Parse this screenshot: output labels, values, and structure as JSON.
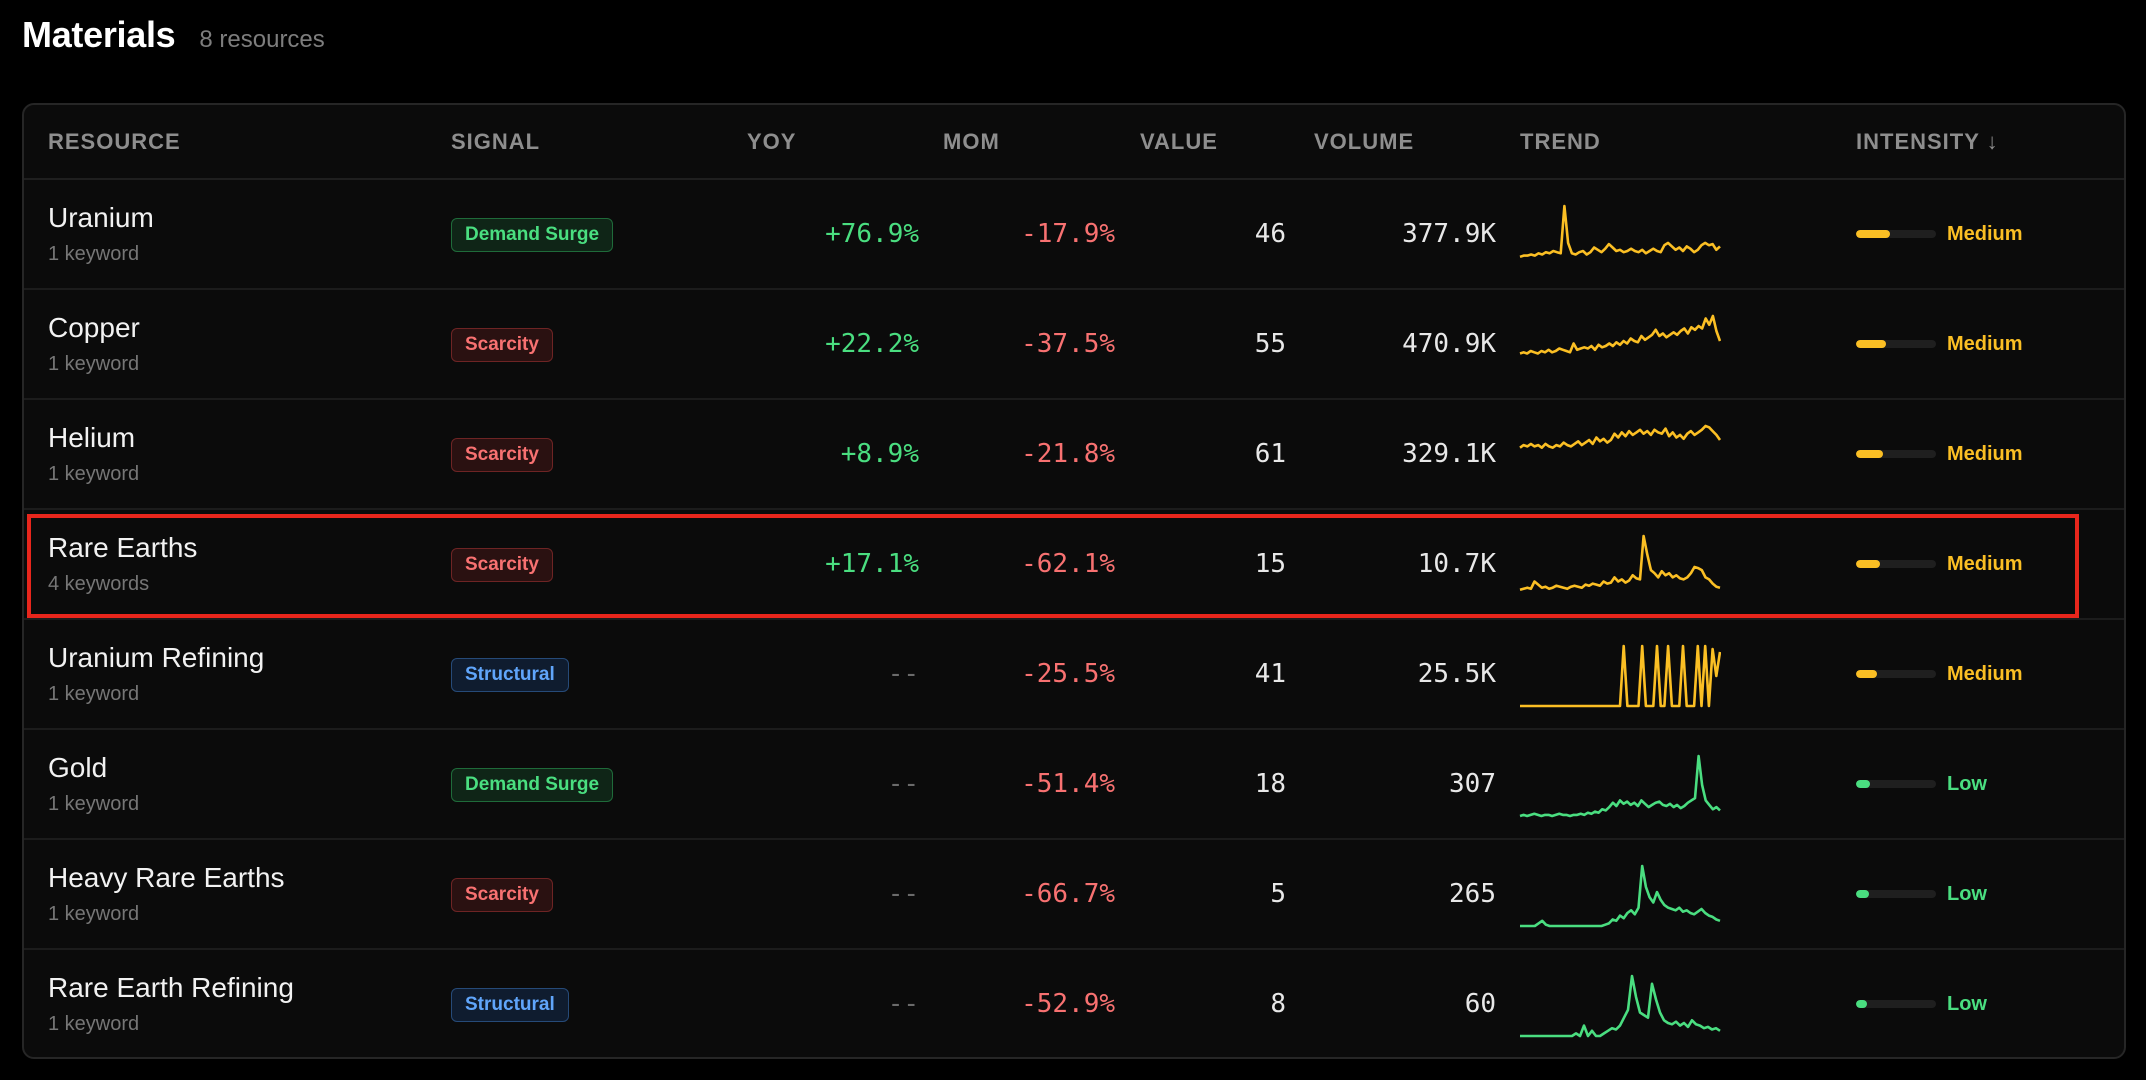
{
  "header": {
    "title": "Materials",
    "count": "8 resources"
  },
  "columns": {
    "resource": "RESOURCE",
    "signal": "SIGNAL",
    "yoy": "YOY",
    "mom": "MOM",
    "value": "VALUE",
    "volume": "VOLUME",
    "trend": "TREND",
    "intensity": "INTENSITY ↓",
    "intensity_sort_icon": "arrow-down-icon"
  },
  "colors": {
    "positive": "#4ade80",
    "negative": "#f87171",
    "medium": "#fbbf24",
    "low": "#4ade80",
    "highlight": "#e8261c",
    "background": "#000000"
  },
  "rows": [
    {
      "name": "Uranium",
      "keywords": "1 keyword",
      "signal": "Demand Surge",
      "signal_type": "demand",
      "yoy": "+76.9%",
      "yoy_type": "pos",
      "mom": "-17.9%",
      "value": "46",
      "volume": "377.9K",
      "intensity": "Medium",
      "intensity_level": 0.42,
      "trend_color": "#fbbf24",
      "trend": [
        8,
        9,
        9,
        10,
        9,
        11,
        10,
        12,
        11,
        13,
        12,
        11,
        52,
        20,
        11,
        10,
        12,
        13,
        10,
        12,
        16,
        14,
        12,
        15,
        19,
        16,
        13,
        14,
        12,
        13,
        15,
        13,
        12,
        14,
        11,
        13,
        15,
        13,
        12,
        18,
        20,
        17,
        14,
        16,
        13,
        17,
        15,
        12,
        14,
        18,
        20,
        18,
        19,
        14,
        17
      ]
    },
    {
      "name": "Copper",
      "keywords": "1 keyword",
      "signal": "Scarcity",
      "signal_type": "scarcity",
      "yoy": "+22.2%",
      "yoy_type": "pos",
      "mom": "-37.5%",
      "value": "55",
      "volume": "470.9K",
      "intensity": "Medium",
      "intensity_level": 0.38,
      "trend_color": "#fbbf24",
      "trend": [
        18,
        19,
        18,
        20,
        19,
        18,
        20,
        19,
        21,
        19,
        20,
        22,
        21,
        20,
        19,
        26,
        21,
        22,
        23,
        22,
        24,
        21,
        25,
        23,
        24,
        26,
        24,
        27,
        25,
        28,
        26,
        30,
        28,
        27,
        32,
        29,
        31,
        33,
        37,
        32,
        34,
        31,
        33,
        35,
        33,
        36,
        38,
        34,
        39,
        37,
        40,
        38,
        46,
        41,
        48,
        36,
        28
      ]
    },
    {
      "name": "Helium",
      "keywords": "1 keyword",
      "signal": "Scarcity",
      "signal_type": "scarcity",
      "yoy": "+8.9%",
      "yoy_type": "pos",
      "mom": "-21.8%",
      "value": "61",
      "volume": "329.1K",
      "intensity": "Medium",
      "intensity_level": 0.34,
      "trend_color": "#fbbf24",
      "trend": [
        30,
        32,
        31,
        33,
        31,
        32,
        30,
        33,
        31,
        30,
        32,
        31,
        34,
        32,
        31,
        33,
        35,
        32,
        34,
        36,
        33,
        38,
        35,
        37,
        34,
        36,
        41,
        38,
        42,
        39,
        43,
        40,
        42,
        44,
        41,
        43,
        40,
        44,
        42,
        41,
        45,
        39,
        42,
        38,
        40,
        37,
        41,
        43,
        40,
        42,
        44,
        47,
        46,
        43,
        40,
        36
      ]
    },
    {
      "name": "Rare Earths",
      "keywords": "4 keywords",
      "signal": "Scarcity",
      "signal_type": "scarcity",
      "yoy": "+17.1%",
      "yoy_type": "pos",
      "mom": "-62.1%",
      "value": "15",
      "volume": "10.7K",
      "intensity": "Medium",
      "intensity_level": 0.3,
      "trend_color": "#fbbf24",
      "trend": [
        6,
        7,
        8,
        7,
        14,
        11,
        8,
        9,
        7,
        8,
        10,
        9,
        8,
        7,
        9,
        10,
        9,
        8,
        11,
        10,
        12,
        11,
        10,
        14,
        12,
        13,
        18,
        14,
        16,
        13,
        15,
        20,
        17,
        16,
        58,
        40,
        25,
        22,
        18,
        24,
        20,
        22,
        18,
        20,
        17,
        16,
        18,
        22,
        28,
        27,
        25,
        18,
        16,
        12,
        9,
        8
      ]
    },
    {
      "name": "Uranium Refining",
      "keywords": "1 keyword",
      "signal": "Structural",
      "signal_type": "structural",
      "yoy": "--",
      "yoy_type": "dash",
      "mom": "-25.5%",
      "value": "41",
      "volume": "25.5K",
      "intensity": "Medium",
      "intensity_level": 0.26,
      "trend_color": "#fbbf24",
      "trend": [
        0,
        0,
        0,
        0,
        0,
        0,
        0,
        0,
        0,
        0,
        0,
        0,
        0,
        0,
        0,
        0,
        0,
        0,
        0,
        0,
        0,
        0,
        0,
        0,
        0,
        0,
        0,
        0,
        40,
        0,
        0,
        0,
        0,
        40,
        0,
        0,
        0,
        40,
        0,
        0,
        40,
        0,
        0,
        0,
        40,
        0,
        0,
        0,
        40,
        0,
        40,
        0,
        38,
        20,
        36
      ]
    },
    {
      "name": "Gold",
      "keywords": "1 keyword",
      "signal": "Demand Surge",
      "signal_type": "demand",
      "yoy": "--",
      "yoy_type": "dash",
      "mom": "-51.4%",
      "value": "18",
      "volume": "307",
      "intensity": "Low",
      "intensity_level": 0.18,
      "trend_color": "#4ade80",
      "trend": [
        0,
        1,
        0,
        1,
        2,
        1,
        0,
        1,
        1,
        0,
        1,
        2,
        1,
        1,
        0,
        1,
        1,
        2,
        1,
        3,
        2,
        4,
        3,
        6,
        5,
        8,
        12,
        9,
        14,
        11,
        13,
        10,
        12,
        9,
        14,
        11,
        8,
        10,
        12,
        13,
        10,
        9,
        11,
        8,
        10,
        7,
        9,
        12,
        14,
        16,
        54,
        28,
        14,
        10,
        6,
        8,
        5
      ]
    },
    {
      "name": "Heavy Rare Earths",
      "keywords": "1 keyword",
      "signal": "Scarcity",
      "signal_type": "scarcity",
      "yoy": "--",
      "yoy_type": "dash",
      "mom": "-66.7%",
      "value": "5",
      "volume": "265",
      "intensity": "Low",
      "intensity_level": 0.16,
      "trend_color": "#4ade80",
      "trend": [
        0,
        0,
        0,
        0,
        0,
        2,
        4,
        1,
        0,
        0,
        0,
        0,
        0,
        0,
        0,
        0,
        0,
        0,
        0,
        0,
        0,
        0,
        0,
        1,
        2,
        5,
        4,
        8,
        6,
        10,
        12,
        9,
        14,
        46,
        30,
        22,
        18,
        26,
        20,
        16,
        14,
        13,
        12,
        14,
        11,
        12,
        10,
        9,
        11,
        13,
        10,
        8,
        7,
        5,
        4
      ]
    },
    {
      "name": "Rare Earth Refining",
      "keywords": "1 keyword",
      "signal": "Structural",
      "signal_type": "structural",
      "yoy": "--",
      "yoy_type": "dash",
      "mom": "-52.9%",
      "value": "8",
      "volume": "60",
      "intensity": "Low",
      "intensity_level": 0.14,
      "trend_color": "#4ade80",
      "trend": [
        0,
        0,
        0,
        0,
        0,
        0,
        0,
        0,
        0,
        0,
        0,
        0,
        0,
        0,
        2,
        0,
        8,
        0,
        4,
        0,
        0,
        2,
        4,
        6,
        5,
        8,
        14,
        20,
        46,
        30,
        18,
        16,
        14,
        40,
        28,
        18,
        12,
        10,
        9,
        11,
        8,
        10,
        7,
        12,
        9,
        8,
        6,
        7,
        5,
        6,
        4
      ]
    }
  ]
}
